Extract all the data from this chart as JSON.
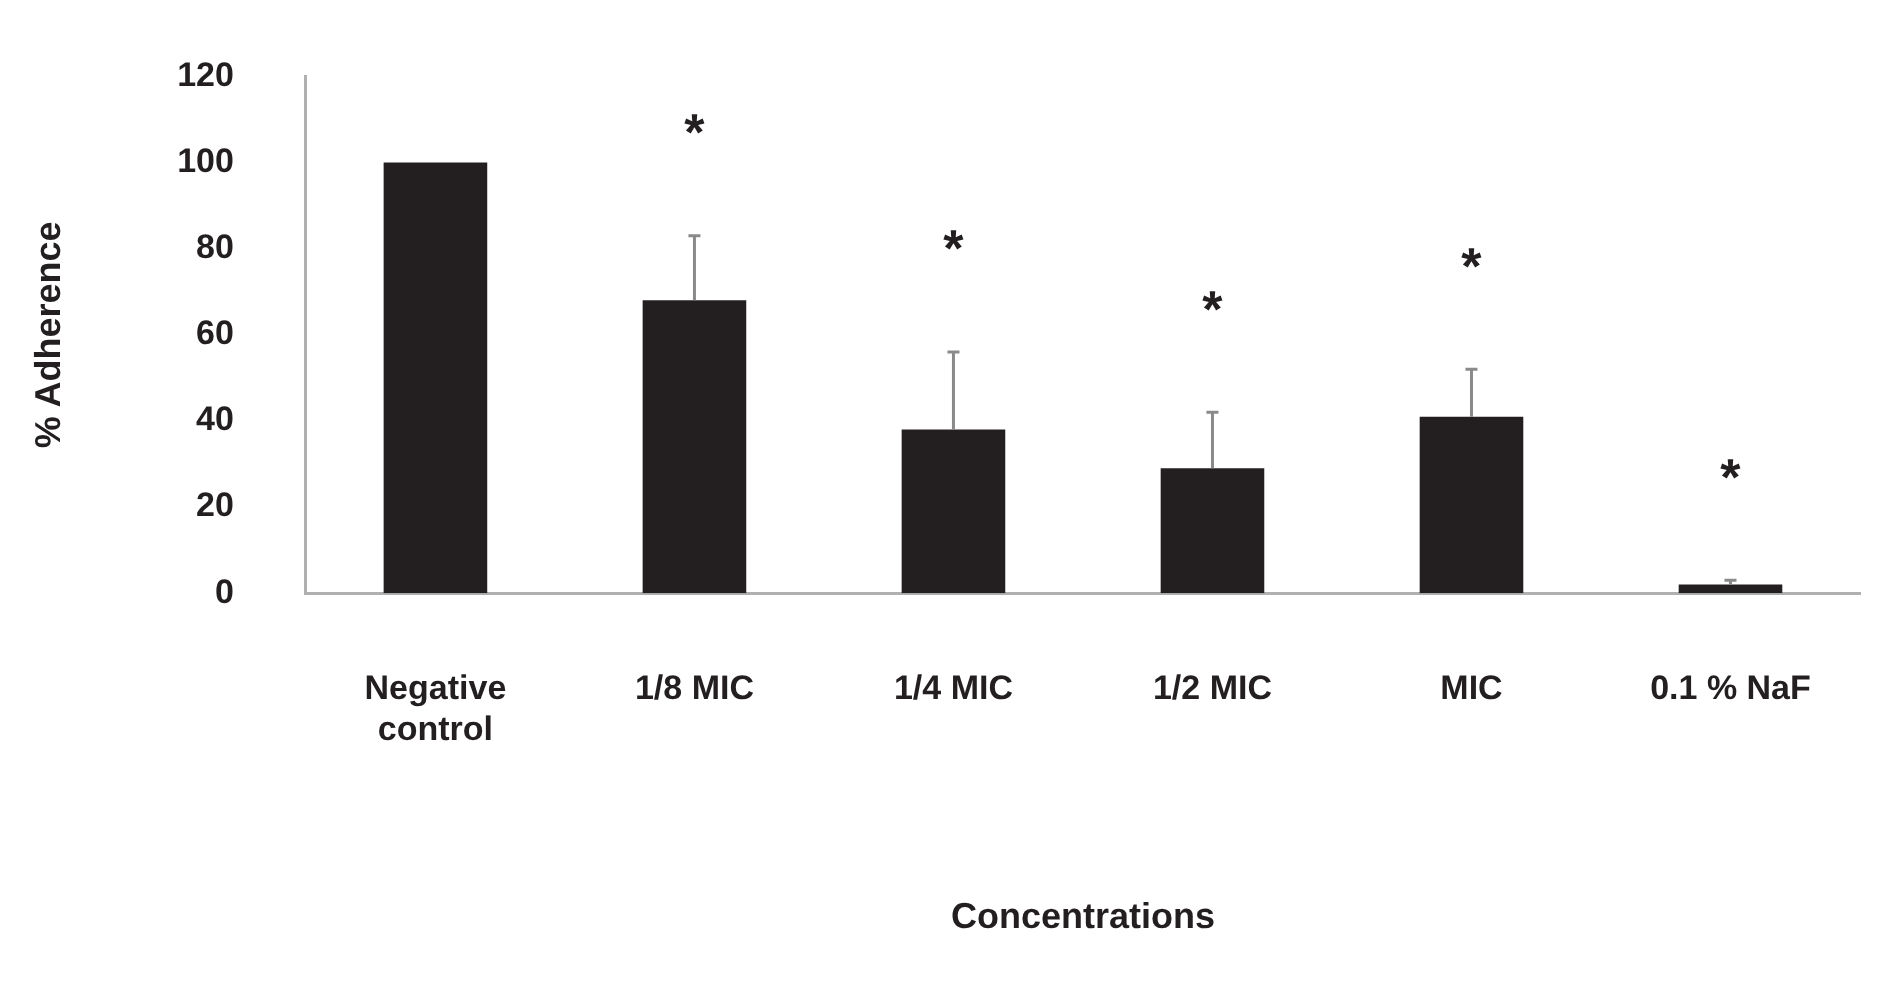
{
  "chart_data": {
    "type": "bar",
    "xlabel": "Concentrations",
    "ylabel": "% Adherence",
    "categories": [
      "Negative control",
      "1/8 MIC",
      "1/4 MIC",
      "1/2 MIC",
      "MIC",
      "0.1 % NaF"
    ],
    "values": [
      100,
      68,
      38,
      29,
      41,
      2
    ],
    "color": "#231f20",
    "errors": [
      null,
      [
        68,
        83
      ],
      [
        38,
        56
      ],
      [
        29,
        42
      ],
      [
        41,
        52
      ],
      [
        2,
        3
      ]
    ],
    "ylim": [
      0,
      120
    ],
    "yticks": [
      0,
      20,
      40,
      60,
      80,
      100,
      120
    ],
    "grid": false,
    "annotations": [
      "*",
      "*",
      "*",
      "*",
      "*"
    ]
  }
}
